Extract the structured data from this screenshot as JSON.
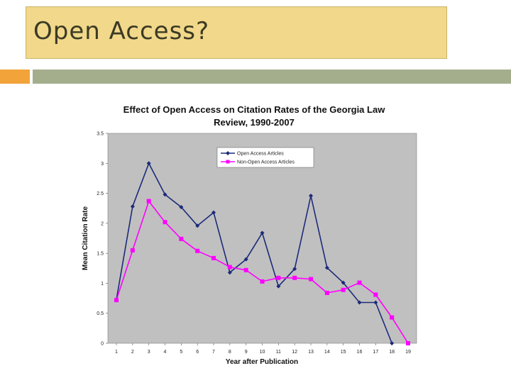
{
  "slide": {
    "title": "Open Access?"
  },
  "colors": {
    "title_box": "#f1d88a",
    "accent": "#f2a33a",
    "rule": "#a4ae8c",
    "plot_bg": "#c0c0c0",
    "series_oa": "#1c2a7a",
    "series_non_oa": "#ff00ff"
  },
  "chart_data": {
    "type": "line",
    "title_line1": "Effect of Open Access on Citation Rates of the Georgia Law",
    "title_line2": "Review, 1990-2007",
    "xlabel": "Year after Publication",
    "ylabel": "Mean Citation Rate",
    "ylim": [
      0,
      3.5
    ],
    "yticks": [
      "0",
      "0.5",
      "1",
      "1.5",
      "2",
      "2.5",
      "3",
      "3.5"
    ],
    "x": [
      "1",
      "2",
      "3",
      "4",
      "5",
      "6",
      "7",
      "8",
      "9",
      "10",
      "11",
      "12",
      "13",
      "14",
      "15",
      "16",
      "17",
      "18",
      "19"
    ],
    "grid": false,
    "legend_position": "top-center",
    "series": [
      {
        "name": "Open Access Articles",
        "marker": "diamond",
        "values": [
          0.73,
          2.28,
          3.0,
          2.48,
          2.27,
          1.96,
          2.18,
          1.18,
          1.4,
          1.84,
          0.95,
          1.24,
          2.46,
          1.26,
          1.01,
          0.68,
          0.68,
          0.0,
          null
        ]
      },
      {
        "name": "Non-Open Access Articles",
        "marker": "square",
        "values": [
          0.72,
          1.55,
          2.37,
          2.02,
          1.74,
          1.54,
          1.42,
          1.27,
          1.22,
          1.03,
          1.09,
          1.09,
          1.07,
          0.84,
          0.89,
          1.01,
          0.81,
          0.43,
          0.0
        ]
      }
    ]
  }
}
